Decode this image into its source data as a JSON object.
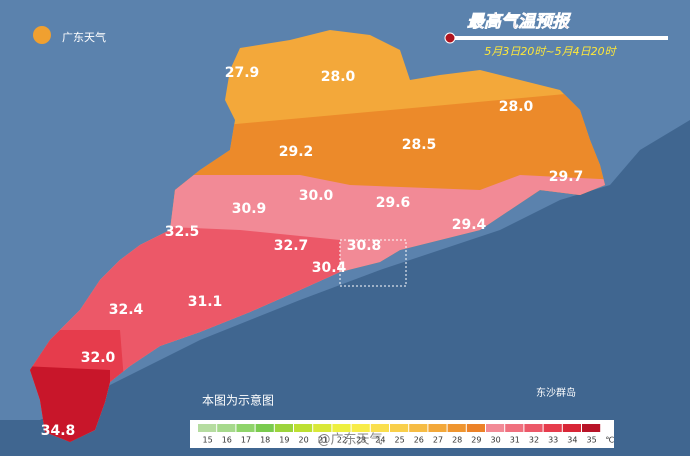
{
  "logo": "广东天气",
  "title": "最高气温预报",
  "subtitle": "5月3日20时~5月4日20时",
  "labels": [
    "27.9",
    "28.0",
    "28.0",
    "29.2",
    "28.5",
    "29.7",
    "30.0",
    "29.6",
    "30.9",
    "29.4",
    "32.5",
    "32.7",
    "30.8",
    "30.4",
    "32.4",
    "31.1",
    "32.0",
    "34.8"
  ],
  "island": "东沙群岛",
  "note": "本图为示意图",
  "watermark": "@广东天气",
  "legend": {
    "unit": "℃",
    "items": [
      {
        "value": 15,
        "color": "#b5dca0"
      },
      {
        "value": 16,
        "color": "#a6d98c"
      },
      {
        "value": 17,
        "color": "#8fd46a"
      },
      {
        "value": 18,
        "color": "#7acb4e"
      },
      {
        "value": 19,
        "color": "#9cd43c"
      },
      {
        "value": 20,
        "color": "#bde032"
      },
      {
        "value": 21,
        "color": "#d9e838"
      },
      {
        "value": 22,
        "color": "#eef040"
      },
      {
        "value": 23,
        "color": "#f8ec48"
      },
      {
        "value": 24,
        "color": "#fadf4e"
      },
      {
        "value": 25,
        "color": "#f9cf4a"
      },
      {
        "value": 26,
        "color": "#f6bc44"
      },
      {
        "value": 27,
        "color": "#f3a83a"
      },
      {
        "value": 28,
        "color": "#ef952f"
      },
      {
        "value": 29,
        "color": "#ec8228"
      },
      {
        "value": 30,
        "color": "#f28a96"
      },
      {
        "value": 31,
        "color": "#f0707e"
      },
      {
        "value": 32,
        "color": "#ec5868"
      },
      {
        "value": 33,
        "color": "#e63c4c"
      },
      {
        "value": 34,
        "color": "#d82636"
      },
      {
        "value": 35,
        "color": "#b81428"
      }
    ]
  }
}
